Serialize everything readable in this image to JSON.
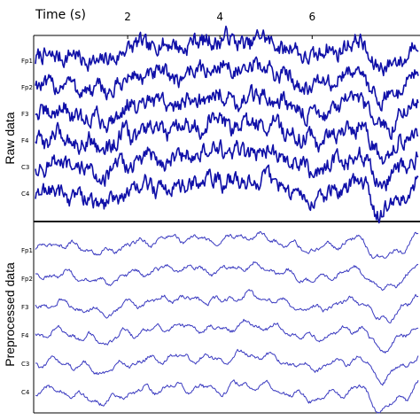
{
  "chart_data": [
    {
      "type": "line",
      "panel_label": "Raw data",
      "xlabel": "Time (s)",
      "xlim": [
        0,
        8.3
      ],
      "x_ticks": [
        2,
        4,
        6
      ],
      "x_tick_labels": [
        "2",
        "4",
        "6"
      ],
      "y_tick_labels": [
        "Fp1",
        "Fp2",
        "F3",
        "F4",
        "C3",
        "C4"
      ],
      "grid": false,
      "line_color": "#1010a8",
      "series": [
        {
          "name": "Fp1",
          "x": [
            0,
            0.5,
            1,
            1.5,
            2,
            2.5,
            3,
            3.5,
            4,
            4.5,
            5,
            5.5,
            6,
            6.5,
            7,
            7.5,
            8,
            8.3
          ],
          "values": [
            0.0,
            0.6,
            0.2,
            -0.3,
            1.4,
            1.8,
            1.6,
            2.0,
            2.4,
            2.0,
            2.4,
            1.2,
            0.4,
            1.2,
            2.0,
            -1.0,
            0.4,
            2.0
          ]
        },
        {
          "name": "Fp2",
          "x": [
            0,
            0.5,
            1,
            1.5,
            2,
            2.5,
            3,
            3.5,
            4,
            4.5,
            5,
            5.5,
            6,
            6.5,
            7,
            7.5,
            8,
            8.3
          ],
          "values": [
            0.0,
            0.4,
            -0.2,
            -0.6,
            0.8,
            1.4,
            1.2,
            1.8,
            2.2,
            1.8,
            2.2,
            1.0,
            0.0,
            0.8,
            1.8,
            -1.6,
            0.2,
            1.8
          ]
        },
        {
          "name": "F3",
          "x": [
            0,
            0.5,
            1,
            1.5,
            2,
            2.5,
            3,
            3.5,
            4,
            4.5,
            5,
            5.5,
            6,
            6.5,
            7,
            7.5,
            8,
            8.3
          ],
          "values": [
            0.0,
            0.3,
            -0.4,
            -0.9,
            0.6,
            1.2,
            1.0,
            1.6,
            2.0,
            1.6,
            2.0,
            0.8,
            -0.2,
            0.6,
            1.6,
            -1.8,
            0.0,
            1.6
          ]
        },
        {
          "name": "F4",
          "x": [
            0,
            0.5,
            1,
            1.5,
            2,
            2.5,
            3,
            3.5,
            4,
            4.5,
            5,
            5.5,
            6,
            6.5,
            7,
            7.5,
            8,
            8.3
          ],
          "values": [
            0.0,
            0.4,
            -0.2,
            -0.8,
            0.6,
            1.2,
            1.0,
            1.6,
            2.0,
            1.6,
            2.0,
            0.8,
            -0.2,
            0.6,
            1.6,
            -1.8,
            0.0,
            1.6
          ]
        },
        {
          "name": "C3",
          "x": [
            0,
            0.5,
            1,
            1.5,
            2,
            2.5,
            3,
            3.5,
            4,
            4.5,
            5,
            5.5,
            6,
            6.5,
            7,
            7.5,
            8,
            8.3
          ],
          "values": [
            0.0,
            0.2,
            -0.4,
            -1.0,
            0.4,
            1.0,
            0.8,
            1.4,
            1.8,
            1.4,
            1.8,
            0.6,
            -0.4,
            0.4,
            1.4,
            -2.0,
            -0.2,
            1.4
          ]
        },
        {
          "name": "C4",
          "x": [
            0,
            0.5,
            1,
            1.5,
            2,
            2.5,
            3,
            3.5,
            4,
            4.5,
            5,
            5.5,
            6,
            6.5,
            7,
            7.5,
            8,
            8.3
          ],
          "values": [
            0.0,
            0.2,
            -0.6,
            -1.2,
            0.2,
            0.8,
            0.6,
            1.2,
            1.6,
            1.2,
            1.6,
            0.4,
            -0.6,
            0.2,
            1.2,
            -2.2,
            -0.4,
            1.2
          ]
        }
      ]
    },
    {
      "type": "line",
      "panel_label": "Preprocessed data",
      "xlim": [
        0,
        8.3
      ],
      "y_tick_labels": [
        "Fp1",
        "Fp2",
        "F3",
        "F4",
        "C3",
        "C4"
      ],
      "grid": false,
      "line_color": "#3a3ac0",
      "series": [
        {
          "name": "Fp1",
          "x": [
            0,
            0.5,
            1,
            1.5,
            2,
            2.5,
            3,
            3.5,
            4,
            4.5,
            5,
            5.5,
            6,
            6.5,
            7,
            7.5,
            8,
            8.3
          ],
          "values": [
            0.0,
            0.8,
            0.2,
            -0.4,
            0.6,
            1.0,
            1.4,
            1.2,
            1.0,
            1.6,
            1.4,
            0.6,
            0.0,
            0.6,
            1.2,
            -1.0,
            0.2,
            1.6
          ]
        },
        {
          "name": "Fp2",
          "x": [
            0,
            0.5,
            1,
            1.5,
            2,
            2.5,
            3,
            3.5,
            4,
            4.5,
            5,
            5.5,
            6,
            6.5,
            7,
            7.5,
            8,
            8.3
          ],
          "values": [
            0.0,
            0.6,
            0.0,
            -0.6,
            0.4,
            0.8,
            1.2,
            1.0,
            0.8,
            1.4,
            1.2,
            0.4,
            -0.2,
            0.4,
            1.0,
            -1.4,
            0.0,
            1.4
          ]
        },
        {
          "name": "F3",
          "x": [
            0,
            0.5,
            1,
            1.5,
            2,
            2.5,
            3,
            3.5,
            4,
            4.5,
            5,
            5.5,
            6,
            6.5,
            7,
            7.5,
            8,
            8.3
          ],
          "values": [
            0.0,
            0.4,
            -0.2,
            -0.8,
            0.2,
            0.6,
            1.0,
            0.8,
            0.6,
            1.2,
            1.0,
            0.2,
            -0.4,
            0.2,
            0.8,
            -1.6,
            -0.2,
            1.2
          ]
        },
        {
          "name": "F4",
          "x": [
            0,
            0.5,
            1,
            1.5,
            2,
            2.5,
            3,
            3.5,
            4,
            4.5,
            5,
            5.5,
            6,
            6.5,
            7,
            7.5,
            8,
            8.3
          ],
          "values": [
            0.0,
            0.4,
            -0.2,
            -0.8,
            0.2,
            0.6,
            1.0,
            0.8,
            0.6,
            1.2,
            1.0,
            0.2,
            -0.4,
            0.2,
            0.8,
            -1.6,
            -0.2,
            1.2
          ]
        },
        {
          "name": "C3",
          "x": [
            0,
            0.5,
            1,
            1.5,
            2,
            2.5,
            3,
            3.5,
            4,
            4.5,
            5,
            5.5,
            6,
            6.5,
            7,
            7.5,
            8,
            8.3
          ],
          "values": [
            0.0,
            0.2,
            -0.4,
            -1.0,
            0.0,
            0.4,
            0.8,
            0.6,
            0.4,
            1.0,
            0.8,
            0.0,
            -0.6,
            0.0,
            0.6,
            -1.8,
            -0.4,
            1.0
          ]
        },
        {
          "name": "C4",
          "x": [
            0,
            0.5,
            1,
            1.5,
            2,
            2.5,
            3,
            3.5,
            4,
            4.5,
            5,
            5.5,
            6,
            6.5,
            7,
            7.5,
            8,
            8.3
          ],
          "values": [
            0.0,
            0.2,
            -0.6,
            -1.2,
            -0.2,
            0.2,
            0.6,
            0.4,
            0.2,
            0.8,
            0.6,
            -0.2,
            -0.8,
            -0.2,
            0.4,
            -2.0,
            -0.6,
            0.8
          ]
        }
      ]
    }
  ]
}
